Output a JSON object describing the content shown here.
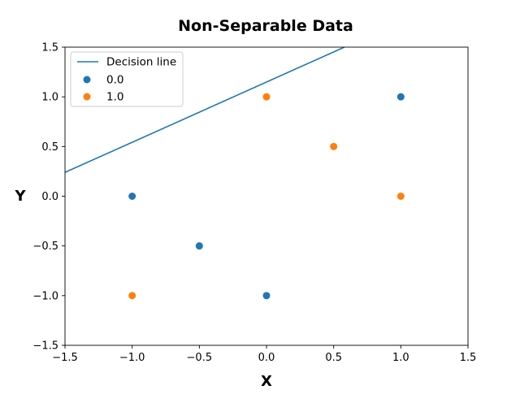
{
  "chart_data": {
    "type": "scatter",
    "title": "Non-Separable Data",
    "xlabel": "X",
    "ylabel": "Y",
    "xlim": [
      -1.5,
      1.5
    ],
    "ylim": [
      -1.5,
      1.5
    ],
    "xticks": [
      -1.5,
      -1.0,
      -0.5,
      0.0,
      0.5,
      1.0,
      1.5
    ],
    "yticks": [
      -1.5,
      -1.0,
      -0.5,
      0.0,
      0.5,
      1.0,
      1.5
    ],
    "xtick_labels": [
      "−1.5",
      "−1.0",
      "−0.5",
      "0.0",
      "0.5",
      "1.0",
      "1.5"
    ],
    "ytick_labels": [
      "−1.5",
      "−1.0",
      "−0.5",
      "0.0",
      "0.5",
      "1.0",
      "1.5"
    ],
    "grid": false,
    "legend_position": "top-left",
    "line": {
      "name": "Decision line",
      "x": [
        -1.5,
        0.58
      ],
      "y": [
        0.24,
        1.5
      ],
      "color": "#1f77b4"
    },
    "series": [
      {
        "name": "0.0",
        "color": "#1f77b4",
        "points": [
          [
            -1.0,
            0.0
          ],
          [
            -0.5,
            -0.5
          ],
          [
            0.0,
            -1.0
          ],
          [
            1.0,
            1.0
          ]
        ]
      },
      {
        "name": "1.0",
        "color": "#ff7f0e",
        "points": [
          [
            -1.0,
            -1.0
          ],
          [
            0.0,
            1.0
          ],
          [
            0.5,
            0.5
          ],
          [
            1.0,
            0.0
          ]
        ]
      }
    ]
  }
}
